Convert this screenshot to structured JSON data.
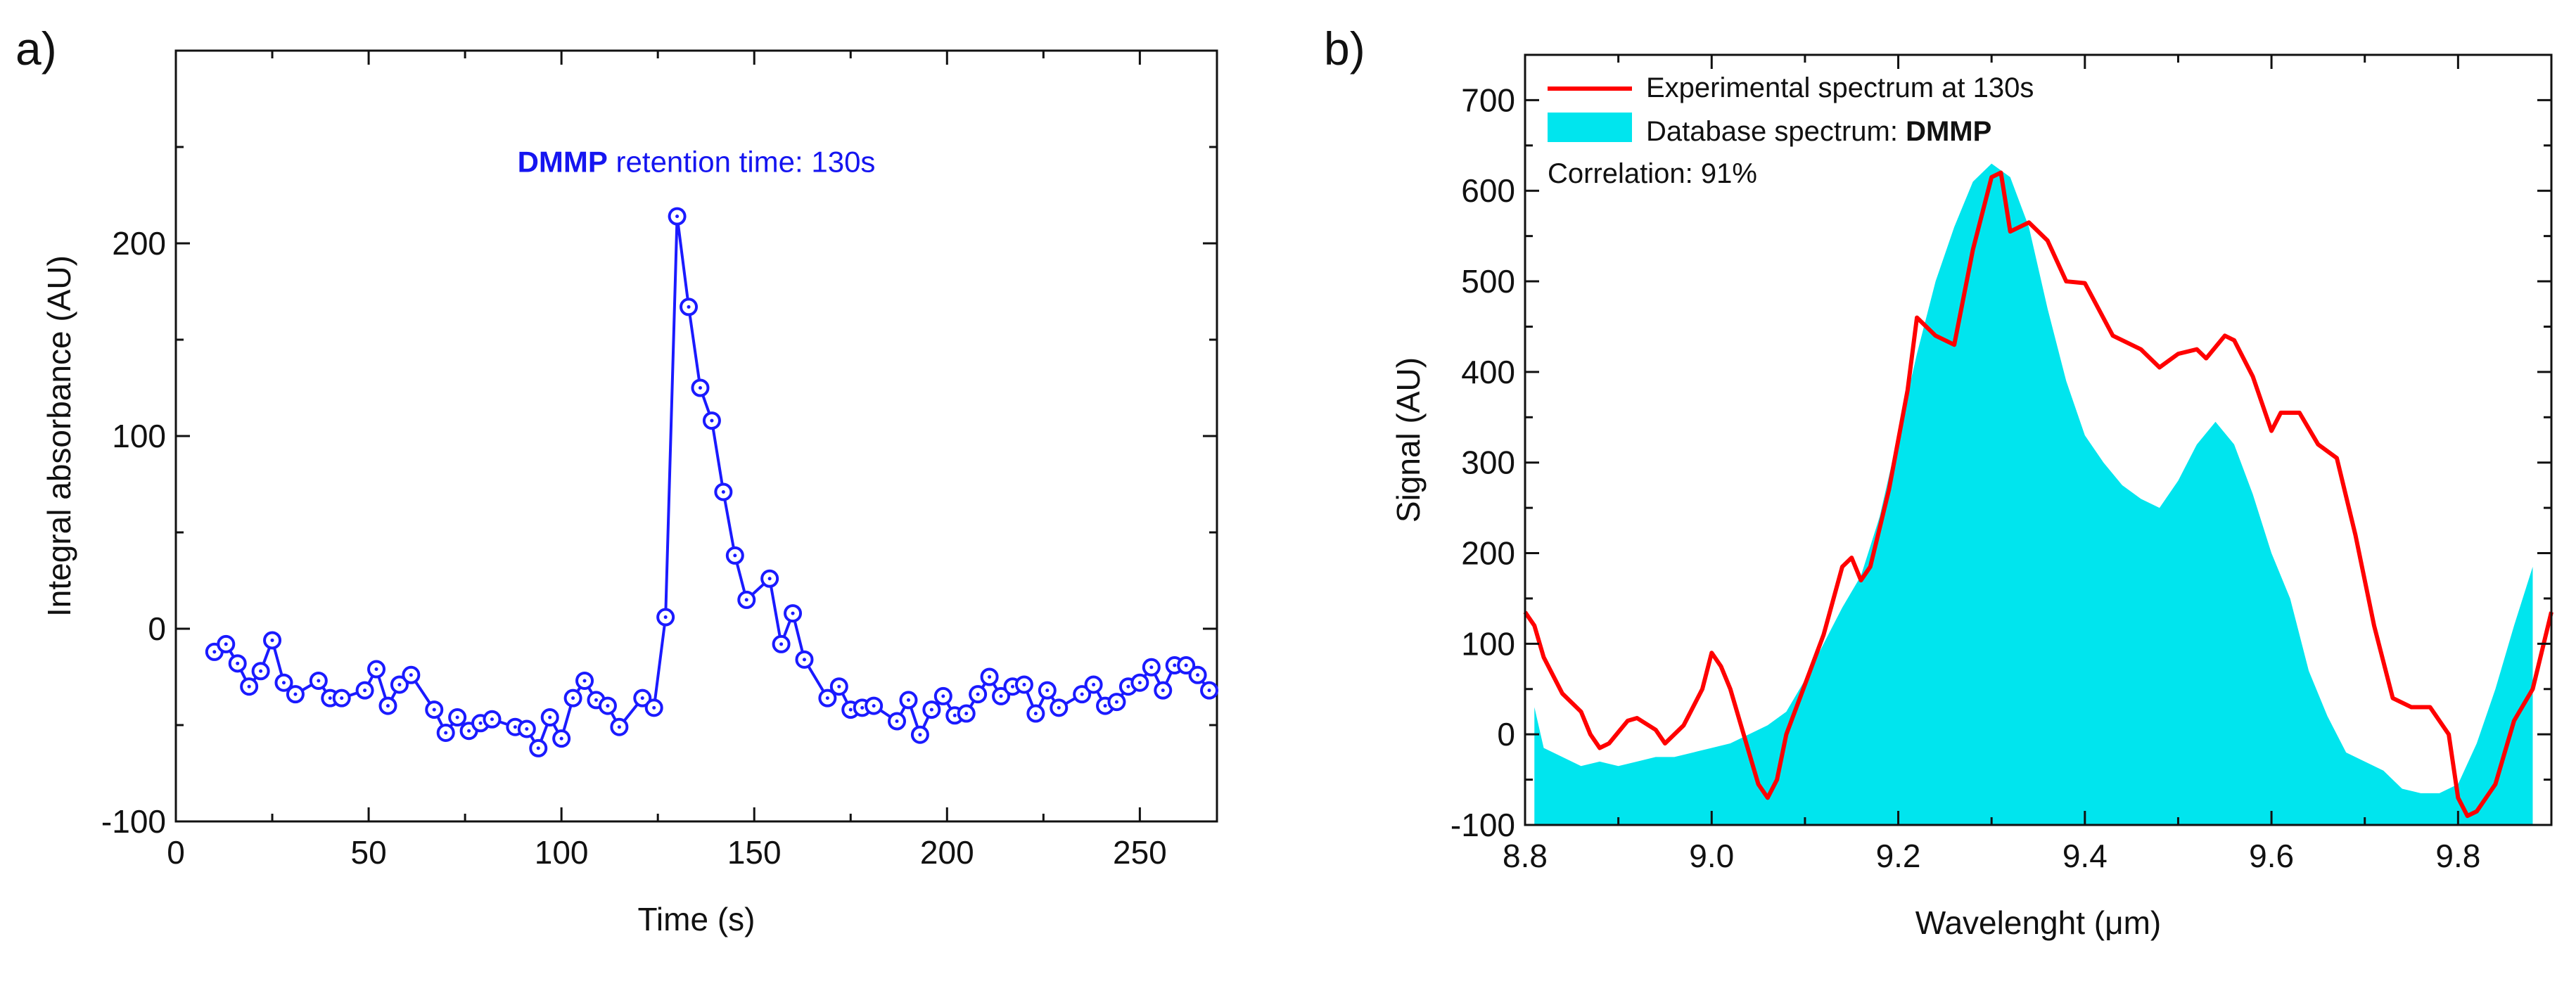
{
  "colors": {
    "blue": "#1a1aff",
    "red": "#ff0000",
    "cyan": "#00e5ee",
    "axis": "#111111"
  },
  "chart_data": [
    {
      "type": "line",
      "panel_label": "a)",
      "xlabel": "Time (s)",
      "ylabel": "Integral absorbance (AU)",
      "xlim": [
        0,
        270
      ],
      "ylim": [
        -100,
        300
      ],
      "xticks": [
        0,
        50,
        100,
        150,
        200,
        250
      ],
      "yticks": [
        -100,
        0,
        100,
        200
      ],
      "annotation": {
        "bold": "DMMP",
        "text": " retention time: 130s",
        "x": 135,
        "y": 237
      },
      "series": [
        {
          "name": "Integral absorbance",
          "marker": "circle-dot",
          "x": [
            10,
            13,
            16,
            19,
            22,
            25,
            28,
            31,
            37,
            40,
            43,
            49,
            52,
            55,
            58,
            61,
            67,
            70,
            73,
            76,
            79,
            82,
            88,
            91,
            94,
            97,
            100,
            103,
            106,
            109,
            112,
            115,
            121,
            124,
            127,
            130,
            133,
            136,
            139,
            142,
            145,
            148,
            154,
            157,
            160,
            163,
            169,
            172,
            175,
            178,
            181,
            187,
            190,
            193,
            196,
            199,
            202,
            205,
            208,
            211,
            214,
            217,
            220,
            223,
            226,
            229,
            235,
            238,
            241,
            244,
            247,
            250,
            253,
            256,
            259,
            262,
            265,
            268,
            270
          ],
          "y": [
            -12,
            -8,
            -18,
            -30,
            -22,
            -6,
            -28,
            -34,
            -27,
            -36,
            -36,
            -32,
            -21,
            -40,
            -29,
            -24,
            -42,
            -54,
            -46,
            -53,
            -49,
            -47,
            -51,
            -52,
            -62,
            -46,
            -57,
            -36,
            -27,
            -37,
            -40,
            -51,
            -36,
            -41,
            6,
            214,
            167,
            125,
            108,
            71,
            38,
            15,
            26,
            -8,
            8,
            -16,
            -36,
            -30,
            -42,
            -41,
            -40,
            -48,
            -37,
            -55,
            -42,
            -35,
            -45,
            -44,
            -34,
            -25,
            -35,
            -30,
            -29,
            -44,
            -32,
            -41,
            -34,
            -29,
            -40,
            -38,
            -30,
            -28,
            -20,
            -32,
            -19,
            -19,
            -24,
            -32,
            -34
          ]
        }
      ]
    },
    {
      "type": "line",
      "panel_label": "b)",
      "xlabel": "Wavelenght (μm)",
      "ylabel": "Signal (AU)",
      "xlim": [
        8.8,
        9.9
      ],
      "ylim": [
        -100,
        750
      ],
      "xticks": [
        8.8,
        9.0,
        9.2,
        9.4,
        9.6,
        9.8
      ],
      "yticks": [
        -100,
        0,
        100,
        200,
        300,
        400,
        500,
        600,
        700
      ],
      "legend": {
        "position": "top-left",
        "entries": [
          "Experimental spectrum at 130s",
          "Database spectrum: "
        ],
        "database_bold": "DMMP",
        "note": "Correlation: 91%"
      },
      "series": [
        {
          "name": "Experimental spectrum at 130s",
          "style": "line",
          "x": [
            8.8,
            8.81,
            8.82,
            8.84,
            8.86,
            8.87,
            8.88,
            8.89,
            8.91,
            8.92,
            8.94,
            8.95,
            8.97,
            8.99,
            9.0,
            9.01,
            9.02,
            9.03,
            9.05,
            9.06,
            9.07,
            9.08,
            9.1,
            9.12,
            9.14,
            9.15,
            9.16,
            9.17,
            9.19,
            9.21,
            9.22,
            9.24,
            9.26,
            9.28,
            9.3,
            9.31,
            9.32,
            9.34,
            9.36,
            9.38,
            9.4,
            9.43,
            9.46,
            9.48,
            9.5,
            9.52,
            9.53,
            9.55,
            9.56,
            9.58,
            9.6,
            9.61,
            9.63,
            9.65,
            9.67,
            9.69,
            9.71,
            9.73,
            9.75,
            9.77,
            9.79,
            9.8,
            9.81,
            9.82,
            9.84,
            9.86,
            9.88,
            9.9
          ],
          "y": [
            135,
            120,
            85,
            45,
            25,
            0,
            -15,
            -10,
            15,
            18,
            5,
            -10,
            10,
            50,
            90,
            75,
            50,
            15,
            -55,
            -70,
            -50,
            0,
            55,
            110,
            185,
            195,
            170,
            185,
            270,
            380,
            460,
            440,
            430,
            535,
            615,
            620,
            555,
            565,
            545,
            500,
            498,
            440,
            425,
            405,
            420,
            425,
            415,
            440,
            435,
            395,
            335,
            355,
            355,
            320,
            305,
            220,
            120,
            40,
            30,
            30,
            0,
            -70,
            -90,
            -85,
            -55,
            15,
            50,
            135
          ]
        },
        {
          "name": "Database spectrum: DMMP",
          "style": "filled-area",
          "x": [
            8.81,
            8.82,
            8.84,
            8.86,
            8.88,
            8.9,
            8.92,
            8.94,
            8.96,
            8.98,
            9.0,
            9.02,
            9.04,
            9.06,
            9.08,
            9.1,
            9.12,
            9.14,
            9.16,
            9.18,
            9.2,
            9.22,
            9.24,
            9.26,
            9.28,
            9.3,
            9.32,
            9.34,
            9.36,
            9.38,
            9.4,
            9.42,
            9.44,
            9.46,
            9.48,
            9.5,
            9.52,
            9.54,
            9.56,
            9.58,
            9.6,
            9.62,
            9.64,
            9.66,
            9.68,
            9.7,
            9.72,
            9.74,
            9.76,
            9.78,
            9.8,
            9.82,
            9.84,
            9.86,
            9.88
          ],
          "y": [
            30,
            -15,
            -25,
            -35,
            -30,
            -35,
            -30,
            -25,
            -25,
            -20,
            -15,
            -10,
            0,
            10,
            25,
            60,
            100,
            140,
            175,
            240,
            330,
            420,
            500,
            560,
            610,
            630,
            615,
            560,
            470,
            390,
            330,
            300,
            275,
            260,
            250,
            280,
            320,
            345,
            320,
            265,
            200,
            150,
            70,
            20,
            -20,
            -30,
            -40,
            -60,
            -65,
            -65,
            -55,
            -10,
            50,
            120,
            185
          ]
        }
      ]
    }
  ]
}
